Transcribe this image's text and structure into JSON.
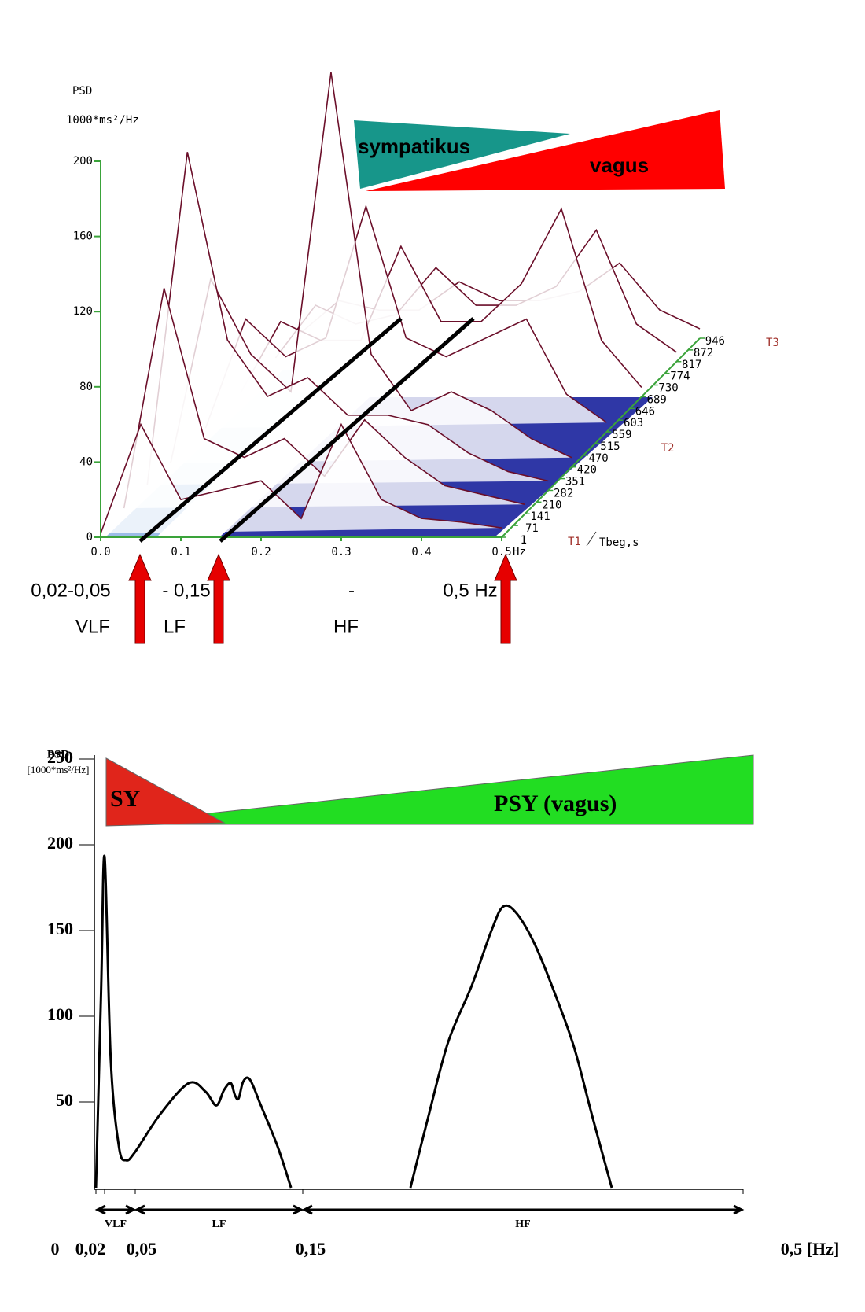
{
  "chart_data": [
    {
      "type": "waterfall",
      "ylabel": "PSD",
      "yunit": "1000*ms²/Hz",
      "x_unit": "Hz",
      "z_label": "Tbeg,s",
      "xlim": [
        0,
        0.5
      ],
      "xticks": [
        {
          "value": 0,
          "label": "0.0"
        },
        {
          "value": 0.1,
          "label": "0.1"
        },
        {
          "value": 0.2,
          "label": "0.2"
        },
        {
          "value": 0.3,
          "label": "0.3"
        },
        {
          "value": 0.4,
          "label": "0.4"
        },
        {
          "value": 0.5,
          "label": "0.5"
        }
      ],
      "ylim": [
        0,
        200
      ],
      "yticks": [
        0,
        40,
        80,
        120,
        160,
        200
      ],
      "zlim": [
        1,
        946
      ],
      "zticks": [
        1,
        71,
        141,
        210,
        282,
        351,
        420,
        470,
        515,
        559,
        603,
        646,
        689,
        730,
        774,
        817,
        872,
        946
      ],
      "time_marks": [
        {
          "value": 1,
          "label": "T1"
        },
        {
          "value": 515,
          "label": "T2"
        },
        {
          "value": 946,
          "label": "T3"
        }
      ],
      "x": [
        0,
        0.05,
        0.1,
        0.15,
        0.2,
        0.25,
        0.3,
        0.35,
        0.4,
        0.45,
        0.5
      ],
      "slices": [
        {
          "t": 1,
          "values": [
            2,
            60,
            20,
            25,
            30,
            10,
            60,
            20,
            10,
            8,
            5
          ]
        },
        {
          "t": 141,
          "values": [
            3,
            120,
            40,
            30,
            40,
            20,
            50,
            30,
            15,
            10,
            5
          ]
        },
        {
          "t": 282,
          "values": [
            3,
            180,
            80,
            50,
            60,
            40,
            40,
            35,
            20,
            10,
            5
          ]
        },
        {
          "t": 420,
          "values": [
            2,
            100,
            60,
            40,
            210,
            60,
            30,
            40,
            30,
            15,
            5
          ]
        },
        {
          "t": 559,
          "values": [
            2,
            60,
            40,
            50,
            120,
            50,
            40,
            50,
            60,
            20,
            5
          ]
        },
        {
          "t": 689,
          "values": [
            2,
            40,
            30,
            30,
            80,
            40,
            40,
            60,
            100,
            30,
            5
          ]
        },
        {
          "t": 817,
          "values": [
            2,
            30,
            20,
            25,
            50,
            30,
            30,
            40,
            70,
            20,
            5
          ]
        },
        {
          "t": 946,
          "values": [
            2,
            20,
            15,
            15,
            30,
            20,
            20,
            25,
            40,
            15,
            5
          ]
        }
      ],
      "color": "#6b0f2a",
      "axis_color": "#3aa33a",
      "annotations": [
        {
          "text": "sympatikus",
          "color": "#17968a"
        },
        {
          "text": "vagus",
          "color": "#ff0000"
        }
      ],
      "band_labels": [
        {
          "range": "0,02-0,05",
          "name": "VLF"
        },
        {
          "range": "- 0,15",
          "name": "LF"
        },
        {
          "range": "-",
          "name": "HF"
        },
        {
          "range": "0,5 Hz"
        }
      ]
    },
    {
      "type": "line",
      "ylabel": "PSD",
      "yunit": "[1000*ms²/Hz]",
      "xlim": [
        0,
        0.5
      ],
      "xticks": [
        0,
        {
          "value": 0.02,
          "label": "0,02"
        },
        {
          "value": 0.05,
          "label": "0,05"
        },
        {
          "value": 0.15,
          "label": "0,15"
        },
        {
          "value": 0.5,
          "label": "0,5 [Hz]"
        }
      ],
      "ylim": [
        0,
        250
      ],
      "yticks": [
        50,
        100,
        150,
        200,
        250
      ],
      "x": [
        0,
        0.012,
        0.02,
        0.026,
        0.034,
        0.041,
        0.05,
        0.065,
        0.082,
        0.092,
        0.0984,
        0.103,
        0.107,
        0.1095,
        0.1117,
        0.1145,
        0.1185,
        0.125,
        0.135,
        0.143,
        0.19,
        0.2356,
        0.25,
        0.2656,
        0.2844,
        0.3,
        0.3094,
        0.32,
        0.3344,
        0.35,
        0.3656,
        0.38,
        0.3956
      ],
      "values": [
        0,
        115,
        193,
        75,
        24,
        16,
        21,
        43,
        61,
        56,
        48,
        57,
        61,
        54,
        52,
        62,
        63,
        48,
        24,
        0,
        null,
        0,
        42,
        85,
        118,
        150,
        164,
        160,
        142,
        114,
        82,
        42,
        0
      ],
      "color": "#000000",
      "annotations": [
        {
          "text": "SY",
          "color": "#e0251b"
        },
        {
          "text": "PSY (vagus)",
          "color": "#22dd22"
        }
      ],
      "bands": [
        {
          "name": "VLF",
          "from": 0,
          "to": 0.05
        },
        {
          "name": "LF",
          "from": 0.05,
          "to": 0.15
        },
        {
          "name": "HF",
          "from": 0.15,
          "to": 0.5
        }
      ]
    }
  ]
}
